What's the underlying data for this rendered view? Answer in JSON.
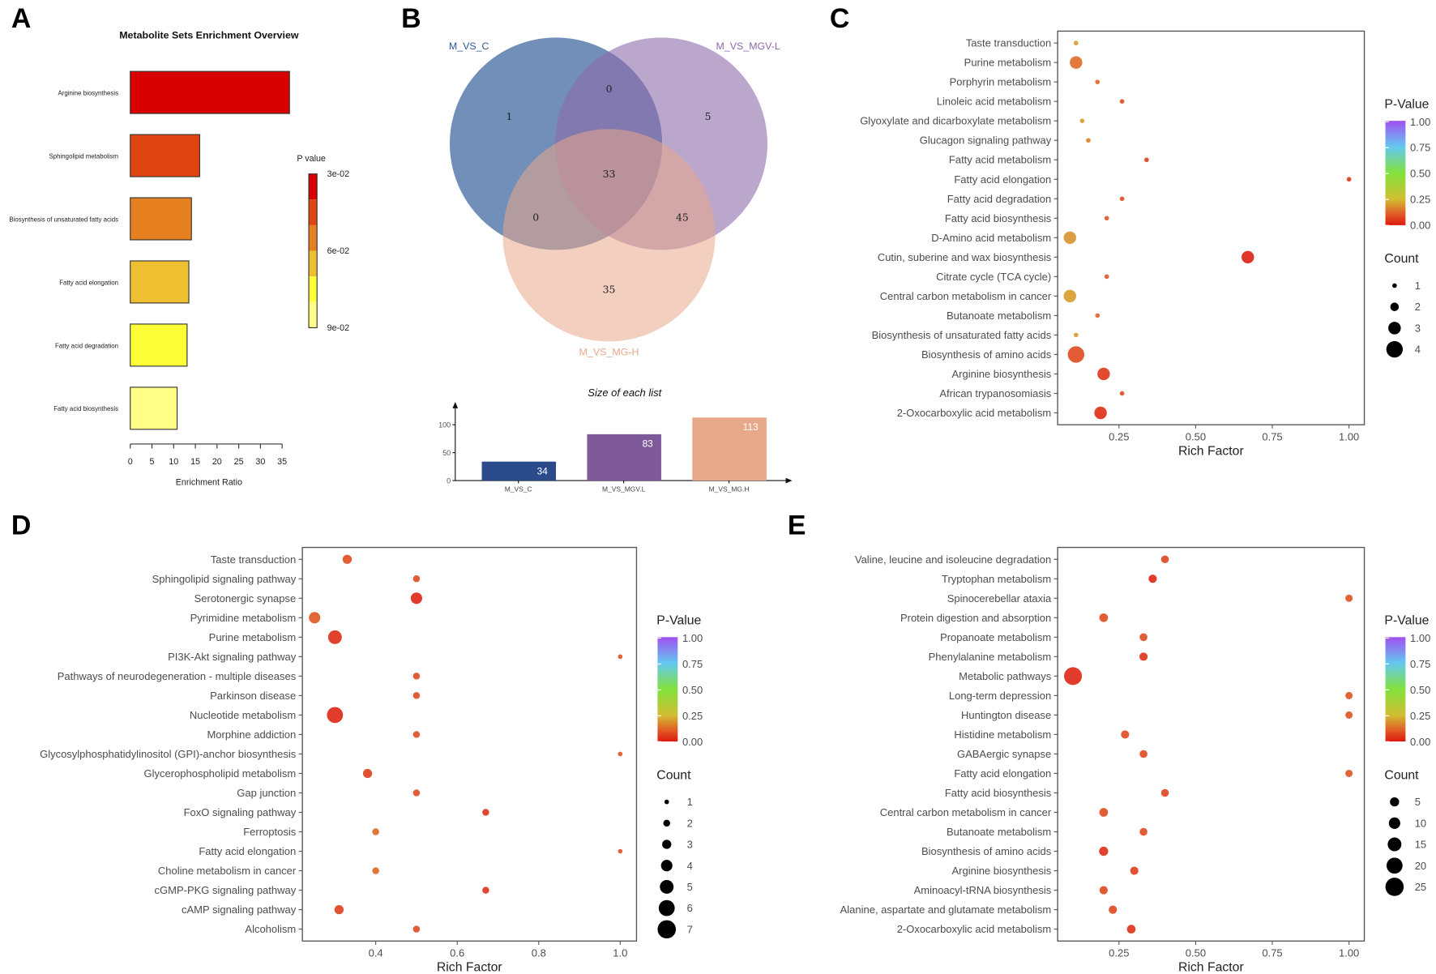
{
  "panels": {
    "a": "A",
    "b": "B",
    "c": "C",
    "d": "D",
    "e": "E"
  },
  "chart_data": [
    {
      "id": "A",
      "type": "bar",
      "orientation": "horizontal",
      "title": "Metabolite Sets Enrichment Overview",
      "xlabel": "Enrichment Ratio",
      "xlim": [
        0,
        35
      ],
      "xticks": [
        "0",
        "5",
        "10",
        "15",
        "20",
        "25",
        "30",
        "35"
      ],
      "categories": [
        "Arginine biosynthesis",
        "Sphingolipid metabolism",
        "Biosynthesis of unsaturated fatty acids",
        "Fatty acid elongation",
        "Fatty acid degradation",
        "Fatty acid biosynthesis"
      ],
      "values": [
        36.7,
        16.0,
        14.1,
        13.5,
        13.1,
        10.8
      ],
      "colors": [
        "#d90000",
        "#df4510",
        "#e57f20",
        "#eebf30",
        "#ffff38",
        "#ffff88"
      ],
      "legend": {
        "title": "P value",
        "labels": [
          "3e-02",
          "6e-02",
          "9e-02"
        ],
        "colors": [
          "#d90000",
          "#df4510",
          "#e57f20",
          "#eebf30",
          "#ffff38",
          "#ffff88"
        ]
      }
    },
    {
      "id": "B-venn",
      "type": "venn",
      "sets": [
        {
          "name": "M_VS_C",
          "color": "#2e5a96"
        },
        {
          "name": "M_VS_MGV-L",
          "color": "#8e6aaa"
        },
        {
          "name": "M_VS_MG-H",
          "color": "#e8a88a"
        }
      ],
      "regions": {
        "only_C": 1,
        "C_MGVL": 0,
        "only_MGVL": 5,
        "all": 33,
        "C_MGH": 0,
        "MGVL_MGH": 45,
        "only_MGH": 35
      }
    },
    {
      "id": "B-bar",
      "type": "bar",
      "title": "Size of each list",
      "categories": [
        "M_VS_C",
        "M_VS_MGV.L",
        "M_VS_MG.H"
      ],
      "values": [
        34,
        83,
        113
      ],
      "value_labels": [
        "34",
        "83",
        "113"
      ],
      "colors": [
        "#2a4a8c",
        "#7e5a9b",
        "#e8a88a"
      ],
      "yticks": [
        "0",
        "50",
        "100"
      ],
      "ylim": [
        0,
        135
      ]
    },
    {
      "id": "C",
      "type": "scatter",
      "xlabel": "Rich Factor",
      "xticks": [
        "0.25",
        "0.50",
        "0.75",
        "1.00"
      ],
      "xtick_values": [
        0.25,
        0.5,
        0.75,
        1.0
      ],
      "xlim": [
        0.05,
        1.05
      ],
      "rows": [
        "Taste transduction",
        "Purine metabolism",
        "Porphyrin metabolism",
        "Linoleic acid metabolism",
        "Glyoxylate and dicarboxylate metabolism",
        "Glucagon signaling pathway",
        "Fatty acid metabolism",
        "Fatty acid elongation",
        "Fatty acid degradation",
        "Fatty acid biosynthesis",
        "D-Amino acid metabolism",
        "Cutin, suberine and wax biosynthesis",
        "Citrate cycle (TCA cycle)",
        "Central carbon metabolism in cancer",
        "Butanoate metabolism",
        "Biosynthesis of unsaturated fatty acids",
        "Biosynthesis of amino acids",
        "Arginine biosynthesis",
        "African trypanosomiasis",
        "2-Oxocarboxylic acid metabolism"
      ],
      "rich_factor": [
        0.11,
        0.11,
        0.18,
        0.26,
        0.13,
        0.15,
        0.34,
        1.0,
        0.26,
        0.21,
        0.09,
        0.67,
        0.21,
        0.09,
        0.18,
        0.11,
        0.11,
        0.2,
        0.26,
        0.19
      ],
      "count": [
        1,
        3,
        1,
        1,
        1,
        1,
        1,
        1,
        1,
        1,
        3,
        3,
        1,
        3,
        1,
        1,
        4,
        3,
        1,
        3
      ],
      "p_value": [
        0.2,
        0.13,
        0.12,
        0.08,
        0.2,
        0.16,
        0.06,
        0.05,
        0.08,
        0.1,
        0.19,
        0.01,
        0.1,
        0.2,
        0.12,
        0.2,
        0.08,
        0.05,
        0.08,
        0.03
      ],
      "color_legend": {
        "title": "P-Value",
        "labels": [
          "1.00",
          "0.75",
          "0.50",
          "0.25",
          "0.00"
        ]
      },
      "size_legend": {
        "title": "Count",
        "labels": [
          "1",
          "2",
          "3",
          "4"
        ],
        "values": [
          1,
          2,
          3,
          4
        ]
      }
    },
    {
      "id": "D",
      "type": "scatter",
      "xlabel": "Rich Factor",
      "xticks": [
        "0.4",
        "0.6",
        "0.8",
        "1.0"
      ],
      "xtick_values": [
        0.4,
        0.6,
        0.8,
        1.0
      ],
      "xlim": [
        0.22,
        1.04
      ],
      "rows": [
        "Taste transduction",
        "Sphingolipid signaling pathway",
        "Serotonergic synapse",
        "Pyrimidine metabolism",
        "Purine metabolism",
        "PI3K-Akt signaling pathway",
        "Pathways of neurodegeneration - multiple diseases",
        "Parkinson disease",
        "Nucleotide metabolism",
        "Morphine addiction",
        "Glycosylphosphatidylinositol (GPI)-anchor biosynthesis",
        "Glycerophospholipid metabolism",
        "Gap junction",
        "FoxO signaling pathway",
        "Ferroptosis",
        "Fatty acid elongation",
        "Choline metabolism in cancer",
        "cGMP-PKG signaling pathway",
        "cAMP signaling pathway",
        "Alcoholism"
      ],
      "rich_factor": [
        0.33,
        0.5,
        0.5,
        0.25,
        0.3,
        1.0,
        0.5,
        0.5,
        0.3,
        0.5,
        1.0,
        0.38,
        0.5,
        0.67,
        0.4,
        1.0,
        0.4,
        0.67,
        0.31,
        0.5
      ],
      "count": [
        3,
        2,
        4,
        4,
        5,
        1,
        2,
        2,
        6,
        2,
        1,
        3,
        2,
        2,
        2,
        1,
        2,
        2,
        3,
        2
      ],
      "p_value": [
        0.08,
        0.08,
        0.02,
        0.1,
        0.03,
        0.09,
        0.08,
        0.08,
        0.02,
        0.08,
        0.09,
        0.06,
        0.08,
        0.04,
        0.12,
        0.09,
        0.12,
        0.04,
        0.06,
        0.08
      ],
      "color_legend": {
        "title": "P-Value",
        "labels": [
          "1.00",
          "0.75",
          "0.50",
          "0.25",
          "0.00"
        ]
      },
      "size_legend": {
        "title": "Count",
        "labels": [
          "1",
          "2",
          "3",
          "4",
          "5",
          "6",
          "7"
        ],
        "values": [
          1,
          2,
          3,
          4,
          5,
          6,
          7
        ]
      }
    },
    {
      "id": "E",
      "type": "scatter",
      "xlabel": "Rich Factor",
      "xticks": [
        "0.25",
        "0.50",
        "0.75",
        "1.00"
      ],
      "xtick_values": [
        0.25,
        0.5,
        0.75,
        1.0
      ],
      "xlim": [
        0.05,
        1.05
      ],
      "rows": [
        "Valine, leucine and isoleucine degradation",
        "Tryptophan metabolism",
        "Spinocerebellar ataxia",
        "Protein digestion and absorption",
        "Propanoate metabolism",
        "Phenylalanine metabolism",
        "Metabolic pathways",
        "Long-term depression",
        "Huntington disease",
        "Histidine metabolism",
        "GABAergic synapse",
        "Fatty acid elongation",
        "Fatty acid biosynthesis",
        "Central carbon metabolism in cancer",
        "Butanoate metabolism",
        "Biosynthesis of amino acids",
        "Arginine biosynthesis",
        "Aminoacyl-tRNA biosynthesis",
        "Alanine, aspartate and glutamate metabolism",
        "2-Oxocarboxylic acid metabolism"
      ],
      "rich_factor": [
        0.4,
        0.36,
        1.0,
        0.2,
        0.33,
        0.33,
        0.1,
        1.0,
        1.0,
        0.27,
        0.33,
        1.0,
        0.4,
        0.2,
        0.33,
        0.2,
        0.3,
        0.2,
        0.23,
        0.29
      ],
      "count": [
        2,
        3,
        1,
        4,
        2,
        3,
        24,
        1,
        1,
        3,
        2,
        1,
        2,
        4,
        2,
        5,
        3,
        3,
        3,
        4
      ],
      "p_value": [
        0.07,
        0.02,
        0.09,
        0.08,
        0.08,
        0.04,
        0.02,
        0.09,
        0.09,
        0.08,
        0.08,
        0.09,
        0.07,
        0.08,
        0.08,
        0.03,
        0.06,
        0.07,
        0.07,
        0.04
      ],
      "color_legend": {
        "title": "P-Value",
        "labels": [
          "1.00",
          "0.75",
          "0.50",
          "0.25",
          "0.00"
        ]
      },
      "size_legend": {
        "title": "Count",
        "labels": [
          "5",
          "10",
          "15",
          "20",
          "25"
        ],
        "values": [
          5,
          10,
          15,
          20,
          25
        ]
      }
    }
  ]
}
